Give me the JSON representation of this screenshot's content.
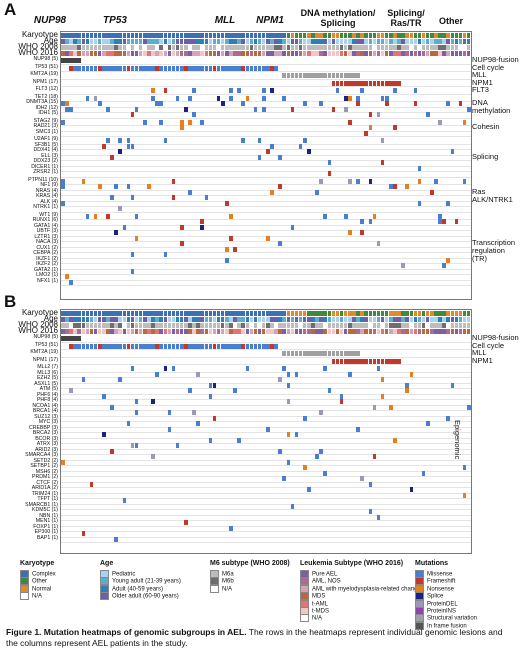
{
  "panel_a": {
    "label": "A",
    "groups": [
      "NUP98",
      "TP53",
      "MLL",
      "NPM1",
      "DNA methylation/ Splicing",
      "Splicing/ Ras/TR",
      "Other"
    ],
    "annotation_rows": [
      "Karyotype",
      "Age",
      "WHO 2008",
      "WHO 2016"
    ],
    "gene_rows": [
      "NUP98 (5)",
      "TP53 (51)",
      "KMT2A (19)",
      "NPM1 (17)",
      "FLT3 (12)",
      "TET2 (18)",
      "DNMT3A (15)",
      "IDH2 (12)",
      "IDH1 (5)",
      "STAG2 (9)",
      "RAD21 (3)",
      "SMC3 (1)",
      "U2AF1 (9)",
      "SF3B1 (5)",
      "DDX41 (4)",
      "ELL (3)",
      "DDX23 (2)",
      "DICER1 (1)",
      "ZRSR2 (1)",
      "PTPN11 (10)",
      "NF1 (9)",
      "NRAS (4)",
      "KRAS (4)",
      "ALK (4)",
      "NTRK1 (1)",
      "WT1 (9)",
      "RUNX1 (6)",
      "GATA1 (4)",
      "UBTF (3)",
      "LZTR1 (3)",
      "NACA (3)",
      "CUX1 (2)",
      "CEBPA (2)",
      "IKZF1 (2)",
      "IKZF2 (2)",
      "GATA2 (1)",
      "LMO2 (1)",
      "NFX1 (1)"
    ],
    "section_labels": [
      "NUP98-fusion",
      "Cell cycle",
      "MLL",
      "NPM1",
      "FLT3",
      "DNA methylation",
      "Cohesin",
      "Splicing",
      "Ras ALK/NTRK1",
      "Transcription regulation (TR)"
    ]
  },
  "panel_b": {
    "label": "B",
    "annotation_rows": [
      "Karyotype",
      "Age",
      "WHO 2008",
      "WHO 2016"
    ],
    "gene_rows": [
      "NUP98 (5)",
      "TP53 (51)",
      "KMT2A (19)",
      "NPM1 (17)",
      "MLL2 (7)",
      "MLL3 (6)",
      "EZH2 (5)",
      "ASXL1 (5)",
      "ATM (5)",
      "PHF6 (4)",
      "PHF8 (4)",
      "NCOA1 (4)",
      "BRCA1 (4)",
      "SUZ12 (3)",
      "MYC (3)",
      "CREBBP (3)",
      "BRCA2 (3)",
      "BCOR (3)",
      "ATRX (3)",
      "ARID2 (3)",
      "SMARCA4 (3)",
      "SETD2 (2)",
      "SETBP1 (2)",
      "MSH6 (2)",
      "PRDM1 (2)",
      "CTCF (2)",
      "ARID1A (2)",
      "TRIM24 (1)",
      "TFPT (1)",
      "SMARCB1 (1)",
      "KDM5C (1)",
      "NBN (1)",
      "MEN1 (1)",
      "FOXP1 (1)",
      "EP300 (1)",
      "BAP1 (1)"
    ],
    "section_labels": [
      "NUP98-fusion",
      "Cell cycle",
      "MLL",
      "NPM1",
      "Epigenomic"
    ]
  },
  "legend": {
    "karyotype": {
      "title": "Karyotype",
      "items": [
        "Complex",
        "Other",
        "Normal",
        "N/A"
      ]
    },
    "age": {
      "title": "Age",
      "items": [
        "Pediatric",
        "Young adult (21-39 years)",
        "Adult (40-59 years)",
        "Older adult (60-90 years)"
      ]
    },
    "m6": {
      "title": "M6 subtype (WHO 2008)",
      "items": [
        "M6a",
        "M6b",
        "N/A"
      ]
    },
    "leukemia": {
      "title": "Leukemia Subtype (WHO 2016)",
      "items": [
        "Pure AEL",
        "AML, NOS",
        "AML with myelodysplasia-related changes",
        "MDS",
        "t-AML",
        "t-MDS",
        "N/A"
      ]
    },
    "mutations": {
      "title": "Mutations",
      "items": [
        "Missense",
        "Frameshift",
        "Nonsense",
        "Splice",
        "ProteinDEL",
        "ProteinINS",
        "Structural variation",
        "In frame fusion"
      ]
    },
    "colors": {
      "karyotype": [
        "#3b6fb6",
        "#3f8a3a",
        "#e08a2a",
        "#ffffff"
      ],
      "age": [
        "#a7d3ee",
        "#5aaecf",
        "#2c7fb8",
        "#6a5fa8"
      ],
      "m6": [
        "#bdbdbd",
        "#6e6e6e",
        "#ffffff"
      ],
      "leukemia": [
        "#7b5fa8",
        "#b06a8c",
        "#d6a2b8",
        "#b86a3a",
        "#e57373",
        "#f3c5c5",
        "#ffffff"
      ],
      "mutations": [
        "#4a7fcf",
        "#c0392b",
        "#e67e22",
        "#1a237e",
        "#9a9ab8",
        "#8e44ad",
        "#a0a0a0",
        "#555555"
      ]
    }
  },
  "caption": {
    "bold": "Figure 1. Mutation heatmaps of genomic subgroups in AEL.",
    "rest": " The rows in the heatmaps represent individual genomic lesions and the columns represent AEL patients in the study."
  }
}
